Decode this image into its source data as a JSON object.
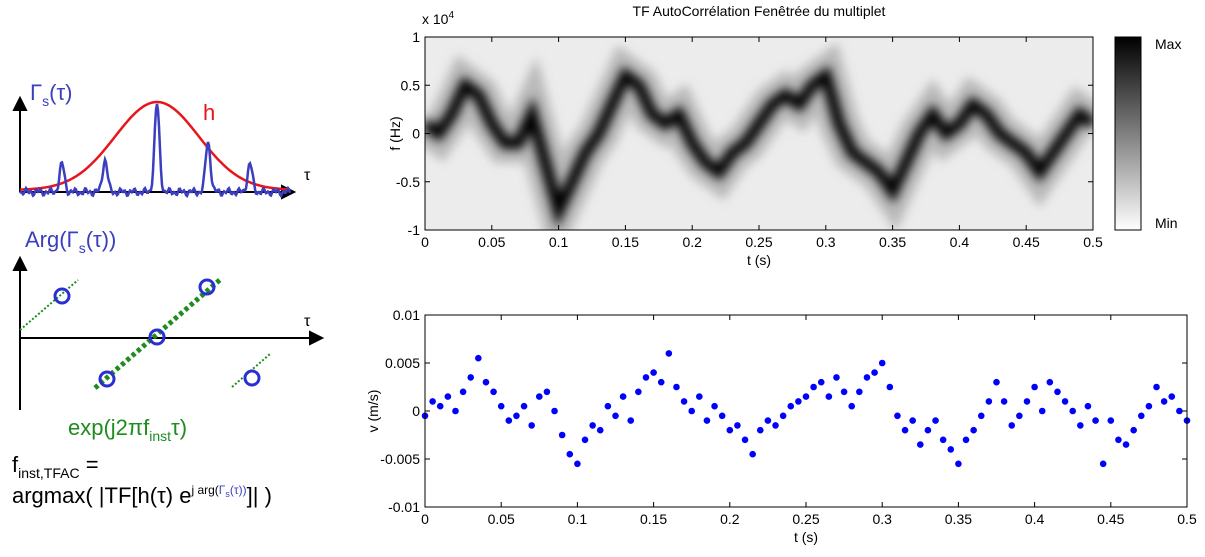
{
  "diagram": {
    "panel1": {
      "gamma": {
        "main": "Γ",
        "sub": "s",
        "rest": "(τ)"
      },
      "h": "h",
      "axis": "τ"
    },
    "panel2": {
      "arg": {
        "pre": "Arg(Γ",
        "sub": "s",
        "rest": "(τ))"
      },
      "axis": "τ",
      "exp": {
        "pre": "exp(j2πf",
        "sub": "inst",
        "rest": "τ)"
      }
    },
    "formula": {
      "f": "f",
      "sub": "inst,TFAC",
      "eq": " =",
      "pre": "argmax( |TF[h(τ) e",
      "sup_j": "j arg(",
      "sup_gamma": "Γ",
      "sup_gamma_sub": "s",
      "sup_rest": "(τ))",
      "post": "]| )"
    }
  },
  "chart_data": [
    {
      "type": "spectrogram",
      "title": "TF AutoCorrélation Fenêtrée du multiplet",
      "xlabel": "t (s)",
      "ylabel": "f (Hz)",
      "y_multiplier": {
        "base": "x 10",
        "exponent": "4"
      },
      "x": [
        0,
        0.01,
        0.02,
        0.03,
        0.04,
        0.05,
        0.06,
        0.07,
        0.08,
        0.09,
        0.1,
        0.11,
        0.12,
        0.13,
        0.14,
        0.15,
        0.16,
        0.17,
        0.18,
        0.19,
        0.2,
        0.21,
        0.22,
        0.23,
        0.24,
        0.25,
        0.26,
        0.27,
        0.28,
        0.29,
        0.3,
        0.31,
        0.32,
        0.33,
        0.34,
        0.35,
        0.36,
        0.37,
        0.38,
        0.39,
        0.4,
        0.41,
        0.42,
        0.43,
        0.44,
        0.45,
        0.46,
        0.47,
        0.48,
        0.49,
        0.5
      ],
      "values": [
        0.1,
        0,
        0.2,
        0.5,
        0.4,
        0.1,
        -0.1,
        -0.1,
        0.2,
        -0.3,
        -0.8,
        -0.5,
        -0.2,
        0,
        0.3,
        0.6,
        0.5,
        0.2,
        0.1,
        0.2,
        -0.1,
        -0.3,
        -0.4,
        -0.2,
        -0.1,
        0.1,
        0.3,
        0.4,
        0.3,
        0.5,
        0.6,
        0.1,
        -0.2,
        -0.3,
        -0.4,
        -0.6,
        -0.3,
        0,
        0.2,
        0,
        0.1,
        0.3,
        0.2,
        0,
        -0.1,
        -0.2,
        -0.4,
        -0.2,
        0,
        0.2,
        0.1
      ],
      "color": "#000000",
      "xlim": [
        0,
        0.5
      ],
      "ylim": [
        -1,
        1
      ],
      "xticks": [
        0,
        0.05,
        0.1,
        0.15,
        0.2,
        0.25,
        0.3,
        0.35,
        0.4,
        0.45,
        0.5
      ],
      "yticks": [
        -1,
        -0.5,
        0,
        0.5,
        1
      ],
      "colorbar": {
        "max_label": "Max",
        "min_label": "Min"
      }
    },
    {
      "type": "scatter",
      "xlabel": "t (s)",
      "ylabel": "v (m/s)",
      "x": [
        0,
        0.005,
        0.01,
        0.015,
        0.02,
        0.025,
        0.03,
        0.035,
        0.04,
        0.045,
        0.05,
        0.055,
        0.06,
        0.065,
        0.07,
        0.075,
        0.08,
        0.085,
        0.09,
        0.095,
        0.1,
        0.105,
        0.11,
        0.115,
        0.12,
        0.125,
        0.13,
        0.135,
        0.14,
        0.145,
        0.15,
        0.155,
        0.16,
        0.165,
        0.17,
        0.175,
        0.18,
        0.185,
        0.19,
        0.195,
        0.2,
        0.205,
        0.21,
        0.215,
        0.22,
        0.225,
        0.23,
        0.235,
        0.24,
        0.245,
        0.25,
        0.255,
        0.26,
        0.265,
        0.27,
        0.275,
        0.28,
        0.285,
        0.29,
        0.295,
        0.3,
        0.305,
        0.31,
        0.315,
        0.32,
        0.325,
        0.33,
        0.335,
        0.34,
        0.345,
        0.35,
        0.355,
        0.36,
        0.365,
        0.37,
        0.375,
        0.38,
        0.385,
        0.39,
        0.395,
        0.4,
        0.405,
        0.41,
        0.415,
        0.42,
        0.425,
        0.43,
        0.435,
        0.44,
        0.445,
        0.45,
        0.455,
        0.46,
        0.465,
        0.47,
        0.475,
        0.48,
        0.485,
        0.49,
        0.495,
        0.5
      ],
      "values": [
        -0.0005,
        0.001,
        0.0005,
        0.0015,
        0,
        0.002,
        0.0035,
        0.0055,
        0.003,
        0.002,
        0.0005,
        -0.001,
        -0.0005,
        0.0005,
        -0.0015,
        0.0015,
        0.002,
        0,
        -0.0025,
        -0.0045,
        -0.0055,
        -0.003,
        -0.0015,
        -0.002,
        0.0005,
        -0.0005,
        0.0015,
        -0.001,
        0.002,
        0.0035,
        0.004,
        0.003,
        0.006,
        0.0025,
        0.001,
        0,
        0.0015,
        -0.001,
        0.0005,
        -0.0005,
        -0.002,
        -0.0015,
        -0.003,
        -0.0045,
        -0.002,
        -0.001,
        -0.0015,
        -0.0005,
        0.0005,
        0.001,
        0.0015,
        0.0025,
        0.003,
        0.0015,
        0.0035,
        0.002,
        0.0005,
        0.002,
        0.0035,
        0.004,
        0.005,
        0.0025,
        -0.0005,
        -0.002,
        -0.001,
        -0.0035,
        -0.002,
        -0.001,
        -0.003,
        -0.004,
        -0.0055,
        -0.003,
        -0.002,
        -0.0005,
        0.001,
        0.003,
        0.001,
        -0.0015,
        -0.0005,
        0.001,
        0.0025,
        0,
        0.003,
        0.002,
        0.001,
        0,
        -0.0015,
        0.0005,
        -0.001,
        -0.0055,
        -0.001,
        -0.003,
        -0.0035,
        -0.002,
        -0.0005,
        0.0005,
        0.0025,
        0.001,
        0.0015,
        0,
        -0.001
      ],
      "color": "#0000ff",
      "xlim": [
        0,
        0.5
      ],
      "ylim": [
        -0.01,
        0.01
      ],
      "xticks": [
        0,
        0.05,
        0.1,
        0.15,
        0.2,
        0.25,
        0.3,
        0.35,
        0.4,
        0.45,
        0.5
      ],
      "yticks": [
        -0.01,
        -0.005,
        0,
        0.005,
        0.01
      ]
    }
  ]
}
